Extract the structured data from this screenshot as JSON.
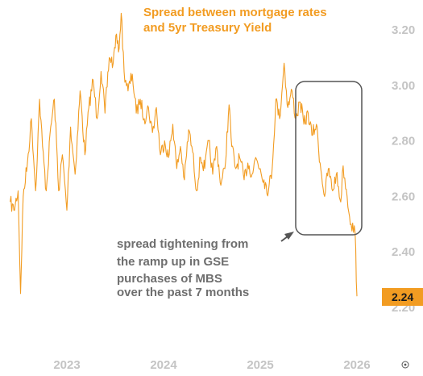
{
  "chart_data": {
    "type": "line",
    "title_lines": [
      "Spread between mortgage rates",
      "and 5yr Treasury Yield"
    ],
    "xlabel": "",
    "ylabel": "",
    "x_ticks": [
      "2023",
      "2024",
      "2025",
      "2026"
    ],
    "y_ticks": [
      "3.20",
      "3.00",
      "2.80",
      "2.60",
      "2.40",
      "2.20"
    ],
    "ylim": [
      2.15,
      3.27
    ],
    "y_axis_side": "right",
    "grid": false,
    "series": [
      {
        "color": "#f29c22",
        "points": [
          [
            "2022-06-01",
            2.58
          ],
          [
            "2022-06-15",
            2.55
          ],
          [
            "2022-07-01",
            2.62
          ],
          [
            "2022-07-10",
            2.25
          ],
          [
            "2022-07-20",
            2.6
          ],
          [
            "2022-08-05",
            2.72
          ],
          [
            "2022-08-20",
            2.88
          ],
          [
            "2022-09-05",
            2.62
          ],
          [
            "2022-09-20",
            2.95
          ],
          [
            "2022-10-01",
            2.78
          ],
          [
            "2022-10-15",
            2.62
          ],
          [
            "2022-11-01",
            2.85
          ],
          [
            "2022-11-15",
            2.95
          ],
          [
            "2022-12-01",
            2.62
          ],
          [
            "2022-12-15",
            2.75
          ],
          [
            "2023-01-01",
            2.55
          ],
          [
            "2023-01-15",
            2.85
          ],
          [
            "2023-02-01",
            2.68
          ],
          [
            "2023-02-20",
            2.98
          ],
          [
            "2023-03-10",
            2.75
          ],
          [
            "2023-03-25",
            2.92
          ],
          [
            "2023-04-10",
            3.02
          ],
          [
            "2023-04-25",
            2.88
          ],
          [
            "2023-05-10",
            3.05
          ],
          [
            "2023-05-25",
            2.9
          ],
          [
            "2023-06-10",
            3.1
          ],
          [
            "2023-06-25",
            3.08
          ],
          [
            "2023-07-05",
            3.18
          ],
          [
            "2023-07-15",
            3.12
          ],
          [
            "2023-07-25",
            3.26
          ],
          [
            "2023-08-05",
            3.05
          ],
          [
            "2023-08-20",
            2.98
          ],
          [
            "2023-09-05",
            3.04
          ],
          [
            "2023-09-20",
            2.9
          ],
          [
            "2023-10-05",
            2.95
          ],
          [
            "2023-10-20",
            2.88
          ],
          [
            "2023-11-05",
            2.92
          ],
          [
            "2023-11-20",
            2.83
          ],
          [
            "2023-12-05",
            2.92
          ],
          [
            "2023-12-20",
            2.75
          ],
          [
            "2024-01-05",
            2.8
          ],
          [
            "2024-01-20",
            2.74
          ],
          [
            "2024-02-05",
            2.86
          ],
          [
            "2024-02-20",
            2.7
          ],
          [
            "2024-03-05",
            2.78
          ],
          [
            "2024-03-20",
            2.66
          ],
          [
            "2024-04-05",
            2.84
          ],
          [
            "2024-04-20",
            2.76
          ],
          [
            "2024-05-05",
            2.62
          ],
          [
            "2024-05-20",
            2.74
          ],
          [
            "2024-06-05",
            2.7
          ],
          [
            "2024-06-20",
            2.8
          ],
          [
            "2024-07-05",
            2.68
          ],
          [
            "2024-07-20",
            2.78
          ],
          [
            "2024-08-05",
            2.64
          ],
          [
            "2024-08-20",
            2.7
          ],
          [
            "2024-09-05",
            2.93
          ],
          [
            "2024-09-15",
            2.78
          ],
          [
            "2024-09-30",
            2.7
          ],
          [
            "2024-10-15",
            2.74
          ],
          [
            "2024-11-01",
            2.66
          ],
          [
            "2024-11-15",
            2.72
          ],
          [
            "2024-12-01",
            2.68
          ],
          [
            "2024-12-15",
            2.74
          ],
          [
            "2025-01-01",
            2.7
          ],
          [
            "2025-01-15",
            2.66
          ],
          [
            "2025-02-01",
            2.62
          ],
          [
            "2025-02-15",
            2.7
          ],
          [
            "2025-03-01",
            2.95
          ],
          [
            "2025-03-15",
            2.88
          ],
          [
            "2025-04-01",
            3.08
          ],
          [
            "2025-04-15",
            2.92
          ],
          [
            "2025-05-01",
            2.98
          ],
          [
            "2025-05-15",
            2.88
          ],
          [
            "2025-06-01",
            2.94
          ],
          [
            "2025-06-15",
            2.86
          ],
          [
            "2025-07-01",
            2.9
          ],
          [
            "2025-07-15",
            2.82
          ],
          [
            "2025-08-01",
            2.86
          ],
          [
            "2025-08-15",
            2.72
          ],
          [
            "2025-09-01",
            2.6
          ],
          [
            "2025-09-15",
            2.7
          ],
          [
            "2025-10-01",
            2.62
          ],
          [
            "2025-10-15",
            2.68
          ],
          [
            "2025-11-01",
            2.58
          ],
          [
            "2025-11-10",
            2.71
          ],
          [
            "2025-11-25",
            2.6
          ],
          [
            "2025-12-10",
            2.5
          ],
          [
            "2025-12-25",
            2.47
          ],
          [
            "2026-01-01",
            2.24
          ]
        ]
      }
    ],
    "last_value_label": "2.24",
    "annotations": [
      {
        "lines": [
          "spread tightening from",
          "the ramp up in GSE",
          "purchases of MBS",
          "over the past 7 months"
        ]
      }
    ]
  }
}
